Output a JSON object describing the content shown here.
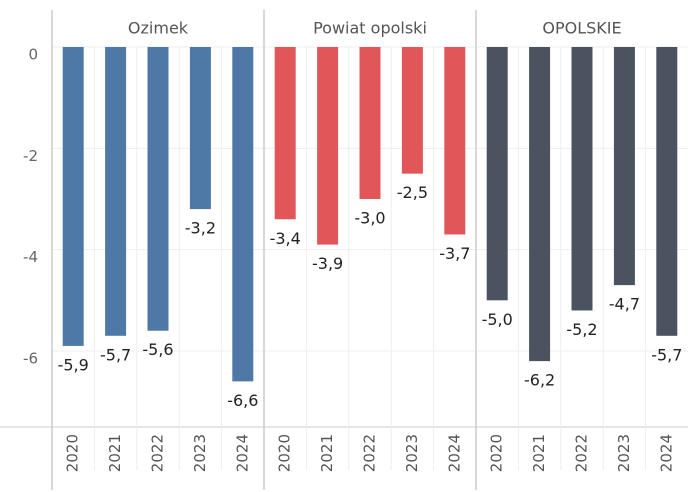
{
  "chart_data": [
    {
      "type": "bar",
      "title": "Ozimek",
      "categories": [
        "2020",
        "2021",
        "2022",
        "2023",
        "2024"
      ],
      "values": [
        -5.9,
        -5.7,
        -5.6,
        -3.2,
        -6.6
      ],
      "value_labels": [
        "-5,9",
        "-5,7",
        "-5,6",
        "-3,2",
        "-6,6"
      ],
      "color": "#4e79a7",
      "ylim": [
        -7.5,
        0
      ],
      "yticks": [
        0,
        -2,
        -4,
        -6
      ],
      "grid": true
    },
    {
      "type": "bar",
      "title": "Powiat opolski",
      "categories": [
        "2020",
        "2021",
        "2022",
        "2023",
        "2024"
      ],
      "values": [
        -3.4,
        -3.9,
        -3.0,
        -2.5,
        -3.7
      ],
      "value_labels": [
        "-3,4",
        "-3,9",
        "-3,0",
        "-2,5",
        "-3,7"
      ],
      "color": "#e15759",
      "ylim": [
        -7.5,
        0
      ],
      "grid": true
    },
    {
      "type": "bar",
      "title": "OPOLSKIE",
      "categories": [
        "2020",
        "2021",
        "2022",
        "2023",
        "2024"
      ],
      "values": [
        -5.0,
        -6.2,
        -5.2,
        -4.7,
        -5.7
      ],
      "value_labels": [
        "-5,0",
        "-6,2",
        "-5,2",
        "-4,7",
        "-5,7"
      ],
      "color": "#4b5361",
      "ylim": [
        -7.5,
        0
      ],
      "grid": true
    }
  ]
}
